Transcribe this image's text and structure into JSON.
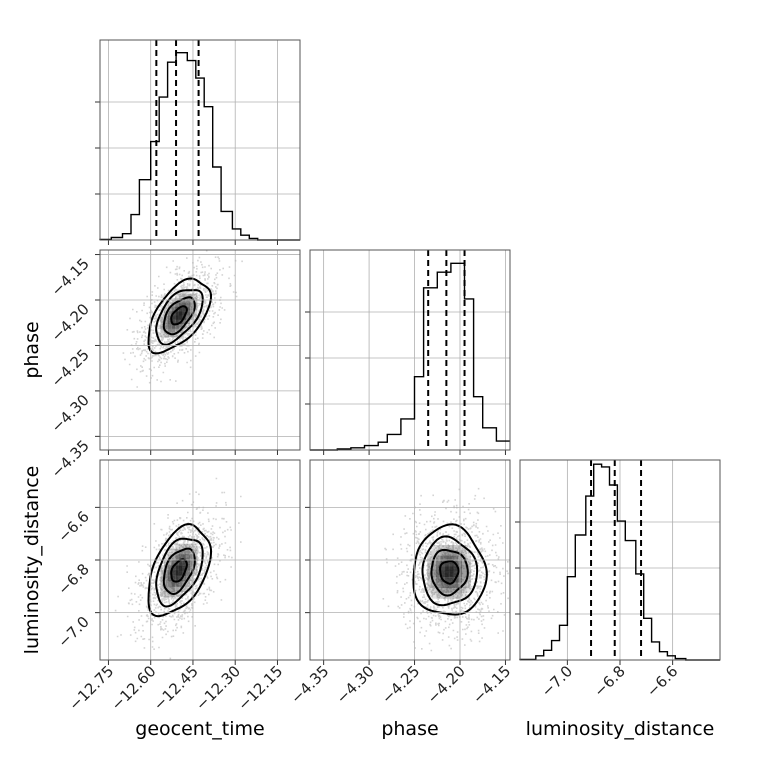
{
  "chart_data": {
    "type": "corner",
    "parameters": [
      "geocent_time",
      "phase",
      "luminosity_distance"
    ],
    "ranges": {
      "geocent_time": [
        -12.78,
        -12.07
      ],
      "phase": [
        -4.365,
        -4.145
      ],
      "luminosity_distance": [
        -7.18,
        -6.42
      ]
    },
    "ticks": {
      "geocent_time": [
        -12.75,
        -12.6,
        -12.45,
        -12.3,
        -12.15
      ],
      "phase": [
        -4.35,
        -4.3,
        -4.25,
        -4.2,
        -4.15
      ],
      "luminosity_distance": [
        -7.0,
        -6.8,
        -6.6
      ]
    },
    "tick_labels": {
      "geocent_time": [
        "−12.75",
        "−12.60",
        "−12.45",
        "−12.30",
        "−12.15"
      ],
      "phase": [
        "−4.35",
        "−4.30",
        "−4.25",
        "−4.20",
        "−4.15"
      ],
      "luminosity_distance": [
        "−7.0",
        "−6.8",
        "−6.6"
      ]
    },
    "axis_labels": {
      "geocent_time": "geocent_time",
      "phase": "phase",
      "luminosity_distance": "luminosity_distance"
    },
    "histograms": {
      "geocent_time": {
        "edges": [
          -12.78,
          -12.74,
          -12.7,
          -12.67,
          -12.64,
          -12.6,
          -12.57,
          -12.54,
          -12.51,
          -12.47,
          -12.44,
          -12.41,
          -12.38,
          -12.35,
          -12.31,
          -12.28,
          -12.25,
          -12.22,
          -12.18,
          -12.07
        ],
        "counts": [
          0.2,
          0.8,
          2.0,
          8.0,
          19.0,
          31.0,
          45.0,
          56.0,
          59.0,
          56.5,
          51.0,
          42.0,
          23.0,
          9.0,
          3.5,
          1.5,
          0.5,
          0.0,
          0.0
        ],
        "max_count": 63,
        "quantiles": [
          -12.58,
          -12.51,
          -12.43
        ]
      },
      "phase": {
        "edges": [
          -4.365,
          -4.335,
          -4.32,
          -4.305,
          -4.29,
          -4.28,
          -4.265,
          -4.25,
          -4.24,
          -4.225,
          -4.21,
          -4.195,
          -4.185,
          -4.175,
          -4.16,
          -4.145
        ],
        "counts": [
          0.0,
          0.5,
          1.0,
          2.0,
          3.5,
          7.0,
          14.0,
          33.0,
          73.0,
          80.0,
          84.0,
          68.0,
          24.0,
          10.0,
          4.0
        ],
        "max_count": 90,
        "quantiles": [
          -4.235,
          -4.215,
          -4.195
        ]
      },
      "luminosity_distance": {
        "edges": [
          -7.18,
          -7.12,
          -7.09,
          -7.06,
          -7.03,
          -7.0,
          -6.97,
          -6.93,
          -6.9,
          -6.87,
          -6.84,
          -6.81,
          -6.78,
          -6.74,
          -6.71,
          -6.68,
          -6.65,
          -6.62,
          -6.59,
          -6.55,
          -6.42
        ],
        "counts": [
          0.2,
          1.5,
          3.5,
          7.0,
          12.5,
          30.0,
          45.0,
          59.0,
          70.5,
          69.5,
          63.0,
          50.0,
          43.0,
          31.0,
          15.0,
          6.5,
          3.0,
          1.5,
          0.5,
          0.0
        ],
        "max_count": 72,
        "quantiles": [
          -6.91,
          -6.82,
          -6.72
        ]
      }
    },
    "density_2d": [
      {
        "x": "geocent_time",
        "y": "phase",
        "center": [
          -12.5,
          -4.217
        ],
        "sigma": [
          0.055,
          0.02
        ],
        "correlation": 0.55,
        "contour_levels": [
          0.5,
          1.0,
          1.5,
          2.0
        ]
      },
      {
        "x": "geocent_time",
        "y": "luminosity_distance",
        "center": [
          -12.5,
          -6.84
        ],
        "sigma": [
          0.055,
          0.085
        ],
        "correlation": 0.45,
        "contour_levels": [
          0.5,
          1.0,
          1.5,
          2.0
        ]
      },
      {
        "x": "phase",
        "y": "luminosity_distance",
        "center": [
          -4.212,
          -6.845
        ],
        "sigma": [
          0.02,
          0.085
        ],
        "correlation": 0.0,
        "contour_levels": [
          0.5,
          1.0,
          1.5,
          2.0
        ]
      }
    ],
    "grid": true,
    "colors": {
      "samples": "#a0a0a0",
      "contours": "#000000",
      "density": "#000000"
    }
  }
}
